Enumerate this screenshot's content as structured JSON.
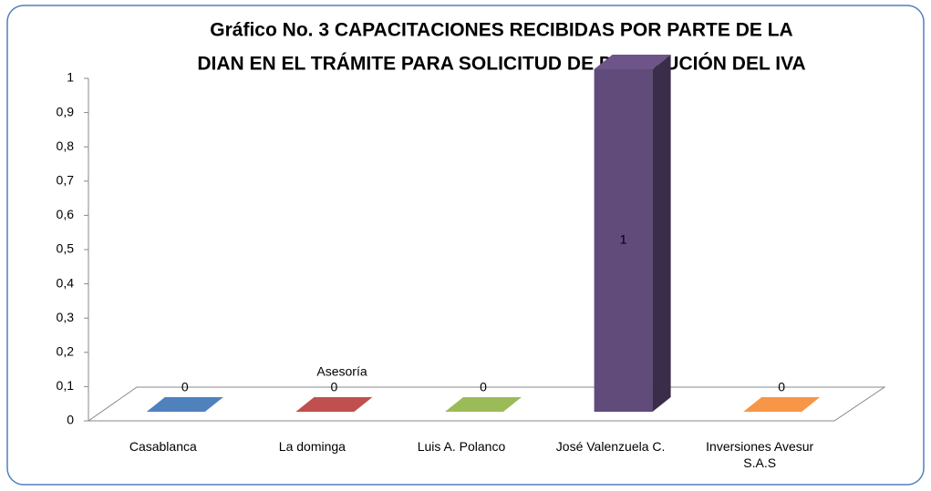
{
  "chart_data": {
    "type": "bar3d",
    "title": [
      "Gráfico No. 3 CAPACITACIONES RECIBIDAS POR PARTE DE LA",
      "DIAN EN EL TRÁMITE PARA SOLICITUD DE DEVOLUCIÓN DEL IVA"
    ],
    "annotation": "Asesoría",
    "categories": [
      "Casablanca",
      "La dominga",
      "Luis A. Polanco",
      "José Valenzuela C.",
      "Inversiones Avesur S.A.S"
    ],
    "values": [
      0,
      0,
      0,
      1,
      0
    ],
    "colors": [
      "#4f81bd",
      "#c0504d",
      "#9bbb59",
      "#8064a2",
      "#f79646"
    ],
    "ylim": [
      0,
      1
    ],
    "yticks": [
      0,
      {
        "value": 0.1,
        "label": "0,1"
      },
      {
        "value": 0.2,
        "label": "0,2"
      },
      {
        "value": 0.3,
        "label": "0,3"
      },
      {
        "value": 0.4,
        "label": "0,4"
      },
      {
        "value": 0.5,
        "label": "0,5"
      },
      {
        "value": 0.6,
        "label": "0,6"
      },
      {
        "value": 0.7,
        "label": "0,7"
      },
      {
        "value": 0.8,
        "label": "0,8"
      },
      {
        "value": 0.9,
        "label": "0,9"
      },
      1
    ]
  }
}
